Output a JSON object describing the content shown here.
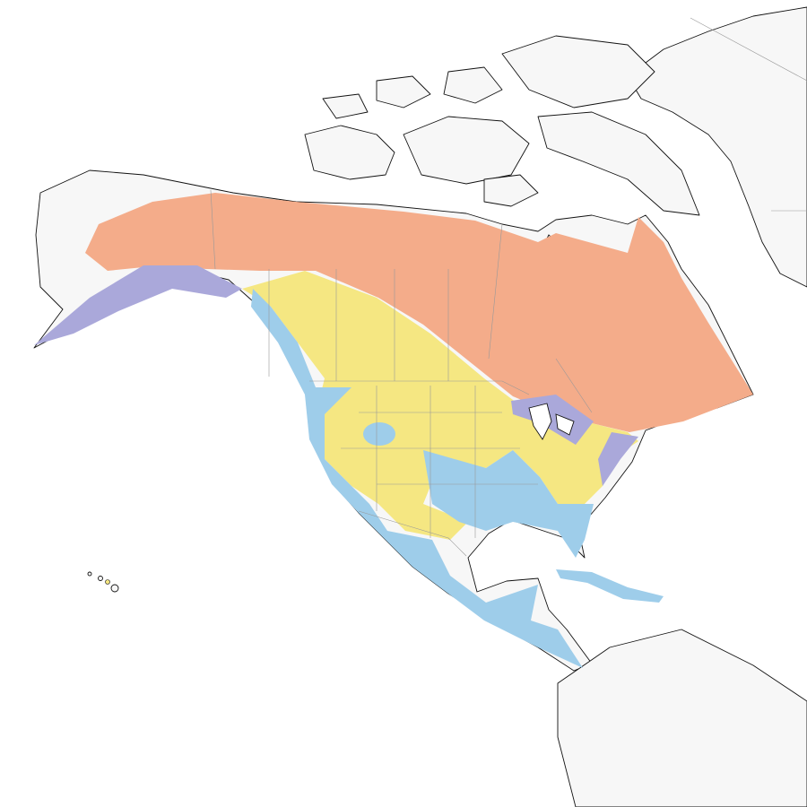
{
  "map": {
    "colors": {
      "ocean": "#ffffff",
      "land": "#f7f7f7",
      "coastline": "#111111",
      "range_orange": "#f4ac8a",
      "range_purple": "#aaa8da",
      "range_yellow": "#f5e782",
      "range_blue": "#9ecdea"
    }
  }
}
